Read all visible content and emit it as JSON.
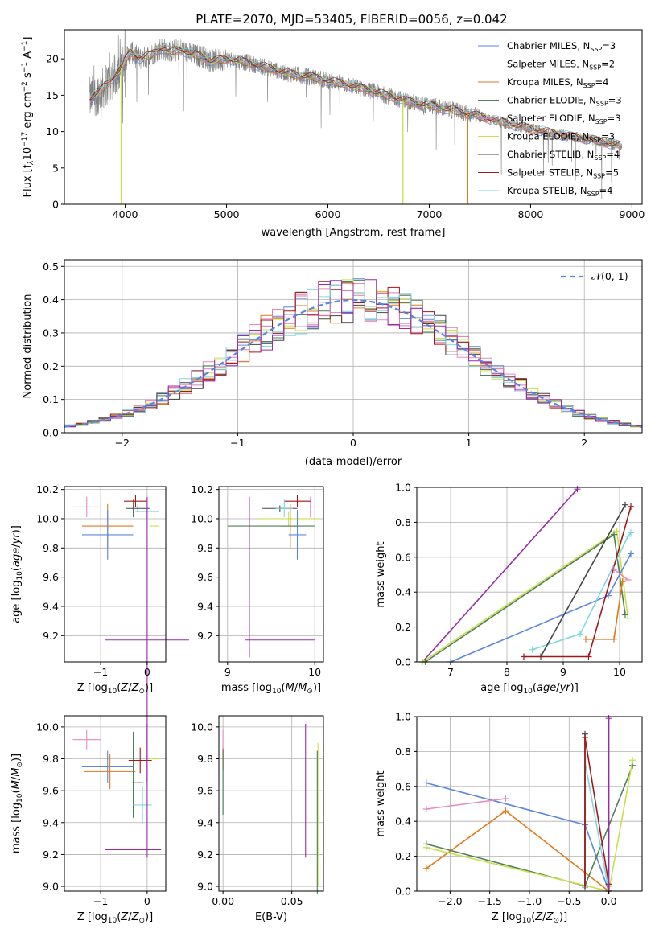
{
  "title": "PLATE=2070, MJD=53405, FIBERID=0056, z=0.042",
  "colors": {
    "chabrier_miles": "#5b86e0",
    "salpeter_miles": "#e889c0",
    "kroupa_miles": "#e07a1c",
    "chabrier_elodie": "#4f7f57",
    "salpeter_elodie": "#d87ab8",
    "kroupa_elodie": "#c8e04a",
    "chabrier_stelib": "#444444",
    "salpeter_stelib": "#a01818",
    "kroupa_stelib": "#7fd6e0",
    "purple": "#9a2ba8",
    "data": "#808080",
    "gaussian": "#5b86e0",
    "grid": "#b0b0b0"
  },
  "chart_data": [
    {
      "id": "spectrum",
      "type": "line",
      "title": "PLATE=2070, MJD=53405, FIBERID=0056, z=0.042",
      "xlabel": "wavelength [Angstrom, rest frame]",
      "ylabel_parts": [
        "Flux [f",
        "λ",
        "10",
        "−17",
        " erg cm",
        "−2",
        " s",
        "−1",
        " A",
        "−1",
        "]"
      ],
      "xlim": [
        3400,
        9100
      ],
      "ylim": [
        0,
        24
      ],
      "xticks": [
        "4000",
        "5000",
        "6000",
        "7000",
        "8000",
        "9000"
      ],
      "yticks": [
        "0",
        "5",
        "10",
        "15",
        "20"
      ],
      "xtick_values": [
        4000,
        5000,
        6000,
        7000,
        8000,
        9000
      ],
      "ytick_values": [
        0,
        5,
        10,
        15,
        20
      ],
      "grid": false,
      "legend_position": "top-right",
      "legend": [
        {
          "name": "Chabrier MILES, N",
          "sub": "SSP",
          "tail": "=3",
          "color": "#5b86e0"
        },
        {
          "name": "Salpeter MILES, N",
          "sub": "SSP",
          "tail": "=2",
          "color": "#e889c0"
        },
        {
          "name": "Kroupa MILES, N",
          "sub": "SSP",
          "tail": "=4",
          "color": "#e07a1c"
        },
        {
          "name": "Chabrier ELODIE, N",
          "sub": "SSP",
          "tail": "=3",
          "color": "#4f7f57"
        },
        {
          "name": "Salpeter ELODIE, N",
          "sub": "SSP",
          "tail": "=3",
          "color": "#d87ab8"
        },
        {
          "name": "Kroupa ELODIE, N",
          "sub": "SSP",
          "tail": "=3",
          "color": "#c8e04a"
        },
        {
          "name": "Chabrier STELIB, N",
          "sub": "SSP",
          "tail": "=4",
          "color": "#444444"
        },
        {
          "name": "Salpeter STELIB, N",
          "sub": "SSP",
          "tail": "=5",
          "color": "#a01818"
        },
        {
          "name": "Kroupa STELIB, N",
          "sub": "SSP",
          "tail": "=4",
          "color": "#7fd6e0"
        }
      ],
      "continuum": [
        [
          3650,
          14.5
        ],
        [
          3750,
          15.5
        ],
        [
          3850,
          17.0
        ],
        [
          3950,
          18.5
        ],
        [
          4050,
          21.0
        ],
        [
          4150,
          20.0
        ],
        [
          4250,
          20.5
        ],
        [
          4350,
          21.5
        ],
        [
          4450,
          21.0
        ],
        [
          4550,
          21.3
        ],
        [
          4650,
          20.6
        ],
        [
          4750,
          20.4
        ],
        [
          4850,
          19.7
        ],
        [
          5000,
          20.0
        ],
        [
          5200,
          19.5
        ],
        [
          5400,
          18.8
        ],
        [
          5600,
          18.0
        ],
        [
          5800,
          17.6
        ],
        [
          6000,
          17.0
        ],
        [
          6200,
          16.4
        ],
        [
          6400,
          15.7
        ],
        [
          6600,
          14.9
        ],
        [
          6800,
          14.1
        ],
        [
          7000,
          13.6
        ],
        [
          7200,
          13.0
        ],
        [
          7400,
          12.4
        ],
        [
          7600,
          11.7
        ],
        [
          7800,
          11.0
        ],
        [
          8000,
          10.4
        ],
        [
          8200,
          9.8
        ],
        [
          8400,
          9.3
        ],
        [
          8600,
          8.9
        ],
        [
          8800,
          8.3
        ],
        [
          8900,
          8.0
        ]
      ],
      "model_drops": [
        {
          "x": 3960,
          "color": "#c8e04a"
        },
        {
          "x": 6740,
          "color": "#c8e04a"
        },
        {
          "x": 7380,
          "color": "#e07a1c"
        }
      ]
    },
    {
      "id": "residuals",
      "type": "histogram",
      "xlabel": "(data-model)/error",
      "ylabel": "Normed distribution",
      "xlim": [
        -2.5,
        2.5
      ],
      "ylim": [
        0,
        0.52
      ],
      "xticks": [
        "−2",
        "−1",
        "0",
        "1",
        "2"
      ],
      "yticks": [
        "0.0",
        "0.1",
        "0.2",
        "0.3",
        "0.4",
        "0.5"
      ],
      "xtick_values": [
        -2,
        -1,
        0,
        1,
        2
      ],
      "ytick_values": [
        0,
        0.1,
        0.2,
        0.3,
        0.4,
        0.5
      ],
      "grid": true,
      "legend_position": "top-right",
      "legend_label": "𝒩(0, 1)",
      "bin_width": 0.1
    },
    {
      "id": "age-vs-z",
      "type": "errorbar",
      "xlabel": "Z [log10(Z/Z⊙)]",
      "ylabel": "age [log10(age/yr)]",
      "xlim": [
        -1.78,
        0.4
      ],
      "ylim": [
        9.02,
        10.22
      ],
      "xticks": [
        "−1",
        "0"
      ],
      "xtick_values": [
        -1,
        0
      ],
      "yticks": [
        "9.2",
        "9.4",
        "9.6",
        "9.8",
        "10.0",
        "10.2"
      ],
      "ytick_values": [
        9.2,
        9.4,
        9.6,
        9.8,
        10.0,
        10.2
      ],
      "grid": true,
      "points": [
        {
          "x": -1.3,
          "xerr": 0.3,
          "y": 10.08,
          "yerr": 0.07,
          "color": "#e889c0"
        },
        {
          "x": -0.85,
          "xerr": 0.55,
          "y": 9.95,
          "yerr": 0.15,
          "color": "#e07a1c"
        },
        {
          "x": -0.85,
          "xerr": 0.55,
          "y": 9.89,
          "yerr": 0.17,
          "color": "#5b86e0"
        },
        {
          "x": -0.3,
          "xerr": 0.0,
          "y": 10.07,
          "yerr": 0.06,
          "color": "#4f7f57"
        },
        {
          "x": -0.2,
          "xerr": 0.25,
          "y": 10.07,
          "yerr": 0.02,
          "color": "#444444"
        },
        {
          "x": -0.25,
          "xerr": 0.25,
          "y": 10.12,
          "yerr": 0.04,
          "color": "#a01818"
        },
        {
          "x": 0.0,
          "xerr": 0.25,
          "y": 10.05,
          "yerr": 0.05,
          "color": "#7fd6e0"
        },
        {
          "x": 0.15,
          "xerr": 0.1,
          "y": 9.95,
          "yerr": 0.11,
          "color": "#c8e04a"
        },
        {
          "x": 0.0,
          "xerr": 0.9,
          "y": 9.17,
          "yerr": 0.98,
          "color": "#9a2ba8"
        }
      ]
    },
    {
      "id": "age-vs-mass",
      "type": "errorbar",
      "xlabel": "mass [log10(M/M⊙)]",
      "ylabel": "",
      "xlim": [
        8.9,
        10.1
      ],
      "ylim": [
        9.02,
        10.22
      ],
      "xticks": [
        "9",
        "10"
      ],
      "xtick_values": [
        9,
        10
      ],
      "yticks": [
        "9.2",
        "9.4",
        "9.6",
        "9.8",
        "10.0",
        "10.2"
      ],
      "ytick_values": [
        9.2,
        9.4,
        9.6,
        9.8,
        10.0,
        10.2
      ],
      "grid": true,
      "points": [
        {
          "x": 9.95,
          "xerr": 0.05,
          "y": 10.08,
          "yerr": 0.07,
          "color": "#e889c0"
        },
        {
          "x": 9.7,
          "xerr": 0.35,
          "y": 10.0,
          "yerr": 0.05,
          "color": "#c8e04a"
        },
        {
          "x": 9.72,
          "xerr": 0.1,
          "y": 9.95,
          "yerr": 0.15,
          "color": "#e07a1c"
        },
        {
          "x": 9.8,
          "xerr": 0.1,
          "y": 9.89,
          "yerr": 0.17,
          "color": "#5b86e0"
        },
        {
          "x": 9.5,
          "xerr": 0.5,
          "y": 9.95,
          "yerr": 0.0,
          "color": "#4f7f57"
        },
        {
          "x": 9.6,
          "xerr": 0.2,
          "y": 10.07,
          "yerr": 0.02,
          "color": "#444444"
        },
        {
          "x": 9.8,
          "xerr": 0.15,
          "y": 10.12,
          "yerr": 0.04,
          "color": "#a01818"
        },
        {
          "x": 9.65,
          "xerr": 0.1,
          "y": 10.07,
          "yerr": 0.06,
          "color": "#7fd6e0"
        },
        {
          "x": 9.25,
          "xerr": 0.0,
          "y": 9.6,
          "yerr": 0.55,
          "color": "#9a2ba8"
        },
        {
          "x": 9.6,
          "xerr": 0.4,
          "y": 9.17,
          "yerr": 0.0,
          "color": "#9a2ba8"
        }
      ]
    },
    {
      "id": "weight-vs-age",
      "type": "line",
      "xlabel": "age [log10(age/yr)]",
      "ylabel": "mass weight",
      "xlim": [
        6.4,
        10.4
      ],
      "ylim": [
        0,
        1
      ],
      "xticks": [
        "7",
        "8",
        "9",
        "10"
      ],
      "xtick_values": [
        7,
        8,
        9,
        10
      ],
      "yticks": [
        "0.0",
        "0.2",
        "0.4",
        "0.6",
        "0.8",
        "1.0"
      ],
      "ytick_values": [
        0,
        0.2,
        0.4,
        0.6,
        0.8,
        1.0
      ],
      "grid": true,
      "series": [
        {
          "color": "#9a2ba8",
          "x": [
            6.5,
            9.25
          ],
          "y": [
            0.0,
            0.99
          ]
        },
        {
          "color": "#c8e04a",
          "x": [
            6.5,
            9.95,
            10.15
          ],
          "y": [
            0.0,
            0.75,
            0.25
          ]
        },
        {
          "color": "#4f7f57",
          "x": [
            6.55,
            9.9,
            10.1
          ],
          "y": [
            0.0,
            0.73,
            0.27
          ]
        },
        {
          "color": "#5b86e0",
          "x": [
            7.0,
            9.8,
            10.2
          ],
          "y": [
            0.0,
            0.38,
            0.62
          ]
        },
        {
          "color": "#7fd6e0",
          "x": [
            8.45,
            9.3,
            10.15,
            10.2
          ],
          "y": [
            0.07,
            0.16,
            0.72,
            0.74
          ]
        },
        {
          "color": "#444444",
          "x": [
            8.6,
            10.1
          ],
          "y": [
            0.03,
            0.9
          ]
        },
        {
          "color": "#a01818",
          "x": [
            8.3,
            9.45,
            10.2
          ],
          "y": [
            0.03,
            0.03,
            0.89
          ]
        },
        {
          "color": "#e07a1c",
          "x": [
            9.4,
            9.9,
            10.05
          ],
          "y": [
            0.13,
            0.13,
            0.46
          ]
        },
        {
          "color": "#e889c0",
          "x": [
            9.9,
            10.15
          ],
          "y": [
            0.53,
            0.47
          ]
        }
      ]
    },
    {
      "id": "mass-vs-z",
      "type": "errorbar",
      "xlabel": "Z [log10(Z/Z⊙)]",
      "ylabel": "mass [log10(M/M⊙)]",
      "xlim": [
        -1.78,
        0.4
      ],
      "ylim": [
        8.97,
        10.07
      ],
      "xticks": [
        "−1",
        "0"
      ],
      "xtick_values": [
        -1,
        0
      ],
      "yticks": [
        "9.0",
        "9.2",
        "9.4",
        "9.6",
        "9.8",
        "10.0"
      ],
      "ytick_values": [
        9.0,
        9.2,
        9.4,
        9.6,
        9.8,
        10.0
      ],
      "grid": true,
      "points": [
        {
          "x": -1.3,
          "xerr": 0.3,
          "y": 9.92,
          "yerr": 0.06,
          "color": "#e889c0"
        },
        {
          "x": -0.85,
          "xerr": 0.55,
          "y": 9.75,
          "yerr": 0.1,
          "color": "#5b86e0"
        },
        {
          "x": -0.8,
          "xerr": 0.55,
          "y": 9.72,
          "yerr": 0.11,
          "color": "#e07a1c"
        },
        {
          "x": -0.3,
          "xerr": 0.0,
          "y": 9.7,
          "yerr": 0.27,
          "color": "#4f7f57"
        },
        {
          "x": -0.2,
          "xerr": 0.12,
          "y": 9.65,
          "yerr": 0.0,
          "color": "#444444"
        },
        {
          "x": -0.15,
          "xerr": 0.25,
          "y": 9.79,
          "yerr": 0.08,
          "color": "#a01818"
        },
        {
          "x": -0.1,
          "xerr": 0.2,
          "y": 9.51,
          "yerr": 0.12,
          "color": "#7fd6e0"
        },
        {
          "x": 0.15,
          "xerr": 0.1,
          "y": 9.8,
          "yerr": 0.11,
          "color": "#c8e04a"
        },
        {
          "x": -0.3,
          "xerr": 0.6,
          "y": 9.23,
          "yerr": 0.0,
          "color": "#9a2ba8"
        },
        {
          "x": 0.0,
          "xerr": 0.0,
          "y": 9.6,
          "yerr": 0.42,
          "color": "#9a2ba8"
        }
      ]
    },
    {
      "id": "mass-vs-ebv",
      "type": "errorbar",
      "xlabel": "E(B-V)",
      "ylabel": "",
      "xlim": [
        -0.003,
        0.073
      ],
      "ylim": [
        8.97,
        10.07
      ],
      "xticks": [
        "0.00",
        "0.05"
      ],
      "xtick_values": [
        0,
        0.05
      ],
      "yticks": [
        "9.0",
        "9.2",
        "9.4",
        "9.6",
        "9.8",
        "10.0"
      ],
      "ytick_values": [
        9.0,
        9.2,
        9.4,
        9.6,
        9.8,
        10.0
      ],
      "grid": true,
      "points": [
        {
          "x": 0.0,
          "xerr": 0.0,
          "y": 9.8,
          "yerr": 0.07,
          "color": "#a01818"
        },
        {
          "x": 0.0,
          "xerr": 0.0,
          "y": 9.6,
          "yerr": 0.15,
          "color": "#7fd6e0"
        },
        {
          "x": 0.0,
          "xerr": 0.0,
          "y": 9.92,
          "yerr": 0.06,
          "color": "#e889c0"
        },
        {
          "x": 0.0,
          "xerr": 0.0,
          "y": 9.65,
          "yerr": 0.2,
          "color": "#4f7f57"
        },
        {
          "x": 0.06,
          "xerr": 0.0,
          "y": 9.6,
          "yerr": 0.42,
          "color": "#9a2ba8"
        },
        {
          "x": 0.069,
          "xerr": 0.0,
          "y": 9.45,
          "yerr": 0.45,
          "color": "#c8e04a"
        },
        {
          "x": 0.0685,
          "xerr": 0.0,
          "y": 9.4,
          "yerr": 0.45,
          "color": "#4f7f57"
        }
      ]
    },
    {
      "id": "weight-vs-z",
      "type": "line",
      "xlabel": "Z [log10(Z/Z⊙)]",
      "ylabel": "mass weight",
      "xlim": [
        -2.42,
        0.42
      ],
      "ylim": [
        0,
        1
      ],
      "xticks": [
        "−2.0",
        "−1.5",
        "−1.0",
        "−0.5",
        "0.0"
      ],
      "xtick_values": [
        -2,
        -1.5,
        -1,
        -0.5,
        0
      ],
      "yticks": [
        "0.0",
        "0.2",
        "0.4",
        "0.6",
        "0.8",
        "1.0"
      ],
      "ytick_values": [
        0,
        0.2,
        0.4,
        0.6,
        0.8,
        1.0
      ],
      "grid": true,
      "series": [
        {
          "color": "#5b86e0",
          "x": [
            -2.3,
            -0.3,
            0.0
          ],
          "y": [
            0.62,
            0.38,
            0.0
          ]
        },
        {
          "color": "#e889c0",
          "x": [
            -2.3,
            -1.3
          ],
          "y": [
            0.47,
            0.53
          ]
        },
        {
          "color": "#e07a1c",
          "x": [
            -2.3,
            -1.3,
            0.0
          ],
          "y": [
            0.13,
            0.46,
            0.0
          ]
        },
        {
          "color": "#4f7f57",
          "x": [
            -2.3,
            -0.3,
            0.3
          ],
          "y": [
            0.27,
            0.03,
            0.72
          ]
        },
        {
          "color": "#c8e04a",
          "x": [
            -2.3,
            0.0,
            0.3
          ],
          "y": [
            0.25,
            0.0,
            0.75
          ]
        },
        {
          "color": "#7fd6e0",
          "x": [
            -0.3,
            -0.3,
            0.0
          ],
          "y": [
            0.02,
            0.74,
            0.0
          ]
        },
        {
          "color": "#444444",
          "x": [
            -0.3,
            -0.3
          ],
          "y": [
            0.03,
            0.9
          ]
        },
        {
          "color": "#a01818",
          "x": [
            -0.3,
            -0.3,
            0.0,
            0.0
          ],
          "y": [
            0.03,
            0.88,
            0.04,
            0.03
          ]
        },
        {
          "color": "#9a2ba8",
          "x": [
            0.0,
            0.0
          ],
          "y": [
            0.0,
            0.99
          ]
        }
      ]
    }
  ]
}
